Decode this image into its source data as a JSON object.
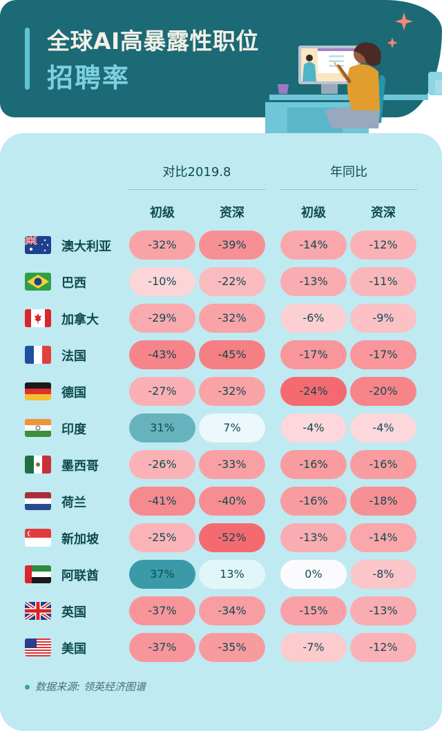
{
  "header": {
    "title_line1": "全球AI高暴露性职位",
    "title_line2": "招聘率"
  },
  "table": {
    "group_headers": [
      "对比2019.8",
      "年同比"
    ],
    "column_headers": [
      "初级",
      "资深",
      "初级",
      "资深"
    ]
  },
  "source": "数据来源: 领英经济图谱",
  "colors": {
    "header_bg": "#1b6a76",
    "card_bg": "#bfeaf1",
    "text_dark": "#0f4a50",
    "positive_strong": "#3a9aa8",
    "negative_strong": "#f56a70",
    "neutral": "#fbfbfd"
  },
  "chart_data": {
    "type": "heatmap",
    "title": "全球AI高暴露性职位招聘率",
    "unit": "%",
    "column_groups": [
      {
        "name": "对比2019.8",
        "columns": [
          "初级",
          "资深"
        ]
      },
      {
        "name": "年同比",
        "columns": [
          "初级",
          "资深"
        ]
      }
    ],
    "columns": [
      "对比2019.8-初级",
      "对比2019.8-资深",
      "年同比-初级",
      "年同比-资深"
    ],
    "rows": [
      {
        "country": "澳大利亚",
        "flag": "AU",
        "values": [
          -32,
          -39,
          -14,
          -12
        ],
        "labels": [
          "-32%",
          "-39%",
          "-14%",
          "-12%"
        ]
      },
      {
        "country": "巴西",
        "flag": "BR",
        "values": [
          -10,
          -22,
          -13,
          -11
        ],
        "labels": [
          "-10%",
          "-22%",
          "-13%",
          "-11%"
        ]
      },
      {
        "country": "加拿大",
        "flag": "CA",
        "values": [
          -29,
          -32,
          -6,
          -9
        ],
        "labels": [
          "-29%",
          "-32%",
          "-6%",
          "-9%"
        ]
      },
      {
        "country": "法国",
        "flag": "FR",
        "values": [
          -43,
          -45,
          -17,
          -17
        ],
        "labels": [
          "-43%",
          "-45%",
          "-17%",
          "-17%"
        ]
      },
      {
        "country": "德国",
        "flag": "DE",
        "values": [
          -27,
          -32,
          -24,
          -20
        ],
        "labels": [
          "-27%",
          "-32%",
          "-24%",
          "-20%"
        ]
      },
      {
        "country": "印度",
        "flag": "IN",
        "values": [
          31,
          7,
          -4,
          -4
        ],
        "labels": [
          "31%",
          "7%",
          "-4%",
          "-4%"
        ]
      },
      {
        "country": "墨西哥",
        "flag": "MX",
        "values": [
          -26,
          -33,
          -16,
          -16
        ],
        "labels": [
          "-26%",
          "-33%",
          "-16%",
          "-16%"
        ]
      },
      {
        "country": "荷兰",
        "flag": "NL",
        "values": [
          -41,
          -40,
          -16,
          -18
        ],
        "labels": [
          "-41%",
          "-40%",
          "-16%",
          "-18%"
        ]
      },
      {
        "country": "新加坡",
        "flag": "SG",
        "values": [
          -25,
          -52,
          -13,
          -14
        ],
        "labels": [
          "-25%",
          "-52%",
          "-13%",
          "-14%"
        ]
      },
      {
        "country": "阿联酋",
        "flag": "AE",
        "values": [
          37,
          13,
          0,
          -8
        ],
        "labels": [
          "37%",
          "13%",
          "0%",
          "-8%"
        ]
      },
      {
        "country": "英国",
        "flag": "GB",
        "values": [
          -37,
          -34,
          -15,
          -13
        ],
        "labels": [
          "-37%",
          "-34%",
          "-15%",
          "-13%"
        ]
      },
      {
        "country": "美国",
        "flag": "US",
        "values": [
          -37,
          -35,
          -7,
          -12
        ],
        "labels": [
          "-37%",
          "-35%",
          "-7%",
          "-12%"
        ]
      }
    ]
  }
}
